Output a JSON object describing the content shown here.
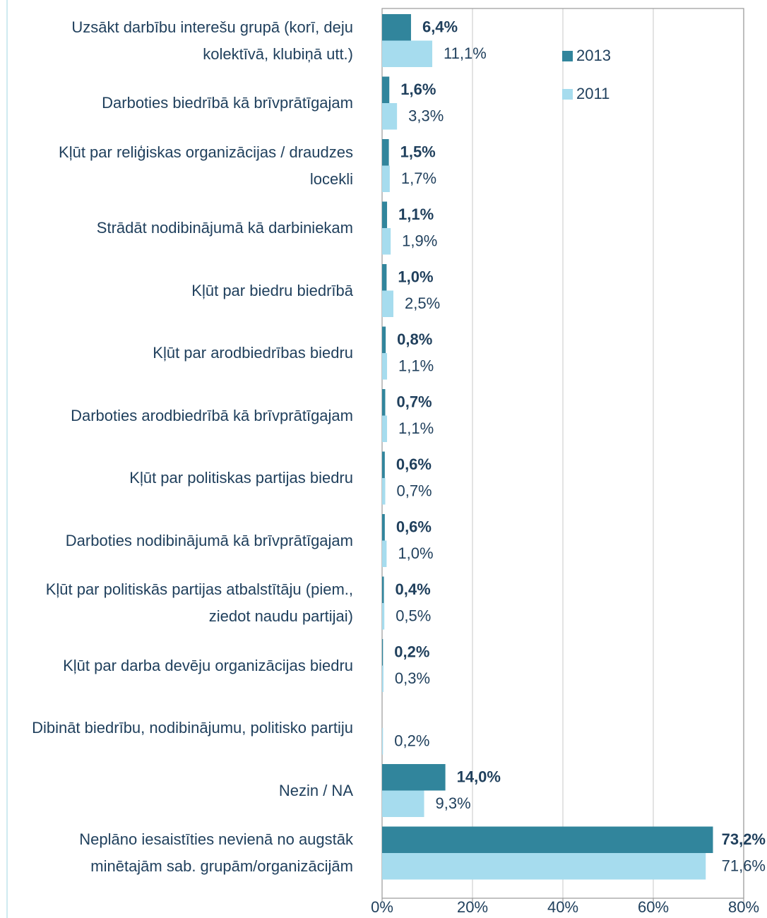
{
  "chart_data": {
    "type": "bar",
    "orientation": "horizontal",
    "categories": [
      "Uzsākt darbību interešu grupā (korī, deju kolektīvā, klubiņā utt.)",
      "Darboties biedrībā kā brīvprātīgajam",
      "Kļūt par reliģiskas organizācijas / draudzes locekli",
      "Strādāt nodibinājumā kā darbiniekam",
      "Kļūt par biedru biedrībā",
      "Kļūt par arodbiedrības biedru",
      "Darboties arodbiedrībā kā brīvprātīgajam",
      "Kļūt par politiskas partijas biedru",
      "Darboties nodibinājumā kā brīvprātīgajam",
      "Kļūt par politiskās partijas atbalstītāju (piem., ziedot naudu partijai)",
      "Kļūt par darba devēju organizācijas biedru",
      "Dibināt biedrību, nodibinājumu, politisko partiju",
      "Nezin / NA",
      "Neplāno iesaistīties nevienā no augstāk minētajām sab. grupām/organizācijām"
    ],
    "series": [
      {
        "name": "2013",
        "color": "#31859c",
        "values": [
          6.4,
          1.6,
          1.5,
          1.1,
          1.0,
          0.8,
          0.7,
          0.6,
          0.6,
          0.4,
          0.2,
          null,
          14.0,
          73.2
        ],
        "value_labels": [
          "6,4%",
          "1,6%",
          "1,5%",
          "1,1%",
          "1,0%",
          "0,8%",
          "0,7%",
          "0,6%",
          "0,6%",
          "0,4%",
          "0,2%",
          null,
          "14,0%",
          "73,2%"
        ]
      },
      {
        "name": "2011",
        "color": "#a6dcee",
        "values": [
          11.1,
          3.3,
          1.7,
          1.9,
          2.5,
          1.1,
          1.1,
          0.7,
          1.0,
          0.5,
          0.3,
          0.2,
          9.3,
          71.6
        ],
        "value_labels": [
          "11,1%",
          "3,3%",
          "1,7%",
          "1,9%",
          "2,5%",
          "1,1%",
          "1,1%",
          "0,7%",
          "1,0%",
          "0,5%",
          "0,3%",
          "0,2%",
          "9,3%",
          "71,6%"
        ]
      }
    ],
    "xlim": [
      0,
      80
    ],
    "xticks": [
      {
        "value": 0,
        "label": "0%"
      },
      {
        "value": 20,
        "label": "20%"
      },
      {
        "value": 40,
        "label": "40%"
      },
      {
        "value": 60,
        "label": "60%"
      },
      {
        "value": 80,
        "label": "80%"
      }
    ],
    "grid": true,
    "legend": "upper right"
  }
}
